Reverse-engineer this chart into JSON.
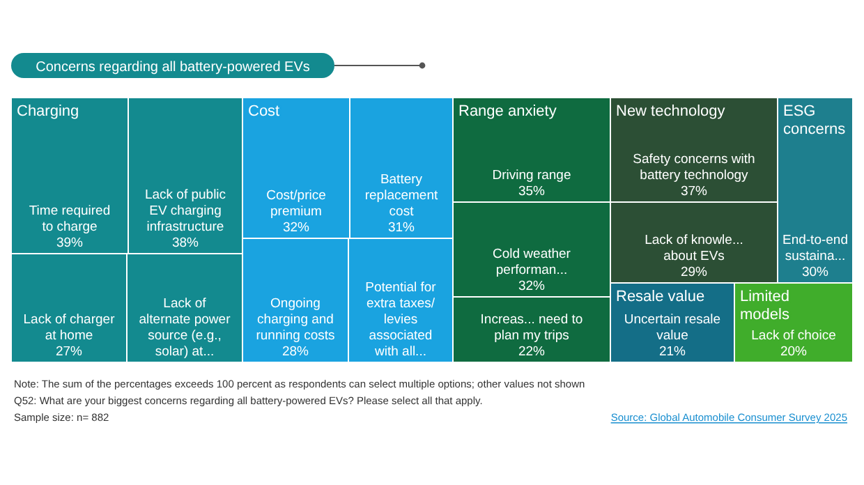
{
  "chart_data": {
    "type": "other",
    "title": "Concerns regarding all battery-powered EVs",
    "categories": [
      "Time required to charge",
      "Lack of public EV charging infrastructure",
      "Lack of charger at home",
      "Lack of alternate power source (e.g., solar) at...",
      "Cost/price premium",
      "Battery replacement cost",
      "Ongoing charging and running costs",
      "Potential for extra taxes/ levies associated with all...",
      "Driving range",
      "Cold weather performan...",
      "Increas... need to plan my trips",
      "Safety concerns with battery technology",
      "Lack of knowle... about EVs",
      "End-to-end sustaina...",
      "Uncertain resale value",
      "Lack of choice"
    ],
    "values": [
      39,
      38,
      27,
      null,
      32,
      31,
      28,
      null,
      35,
      32,
      22,
      37,
      29,
      30,
      21,
      20
    ],
    "value_labels": [
      "39%",
      "38%",
      "27%",
      null,
      "32%",
      "31%",
      "28%",
      null,
      "35%",
      "32%",
      "22%",
      "37%",
      "29%",
      "30%",
      "21%",
      "20%"
    ],
    "colors": [
      "#138a8f",
      "#138a8f",
      "#138a8f",
      "#138a8f",
      "#1aa3e0",
      "#1aa3e0",
      "#1aa3e0",
      "#1aa3e0",
      "#0f6b40",
      "#0f6b40",
      "#0f6b40",
      "#2c4f35",
      "#2c4f35",
      "#1e7f8e",
      "#146e87",
      "#40ad2b"
    ],
    "annotations": [
      {
        "text": "Charging",
        "x": "Time required to charge"
      },
      {
        "text": "Cost",
        "x": "Cost/price premium"
      },
      {
        "text": "Range anxiety",
        "x": "Driving range"
      },
      {
        "text": "New technology",
        "x": "Safety concerns with battery technology"
      },
      {
        "text": "ESG concerns",
        "x": "End-to-end sustaina..."
      },
      {
        "text": "Resale value",
        "x": "Uncertain resale value"
      },
      {
        "text": "Limited models",
        "x": "Lack of choice"
      },
      "Note: The sum of the percentages exceeds 100 percent as respondents can select multiple options; other values not shown",
      "Q52: What are your biggest concerns regarding all battery-powered EVs? Please select all that apply.",
      "Sample size: n= 882",
      "Source: Global Automobile Consumer Survey 2025"
    ]
  }
}
